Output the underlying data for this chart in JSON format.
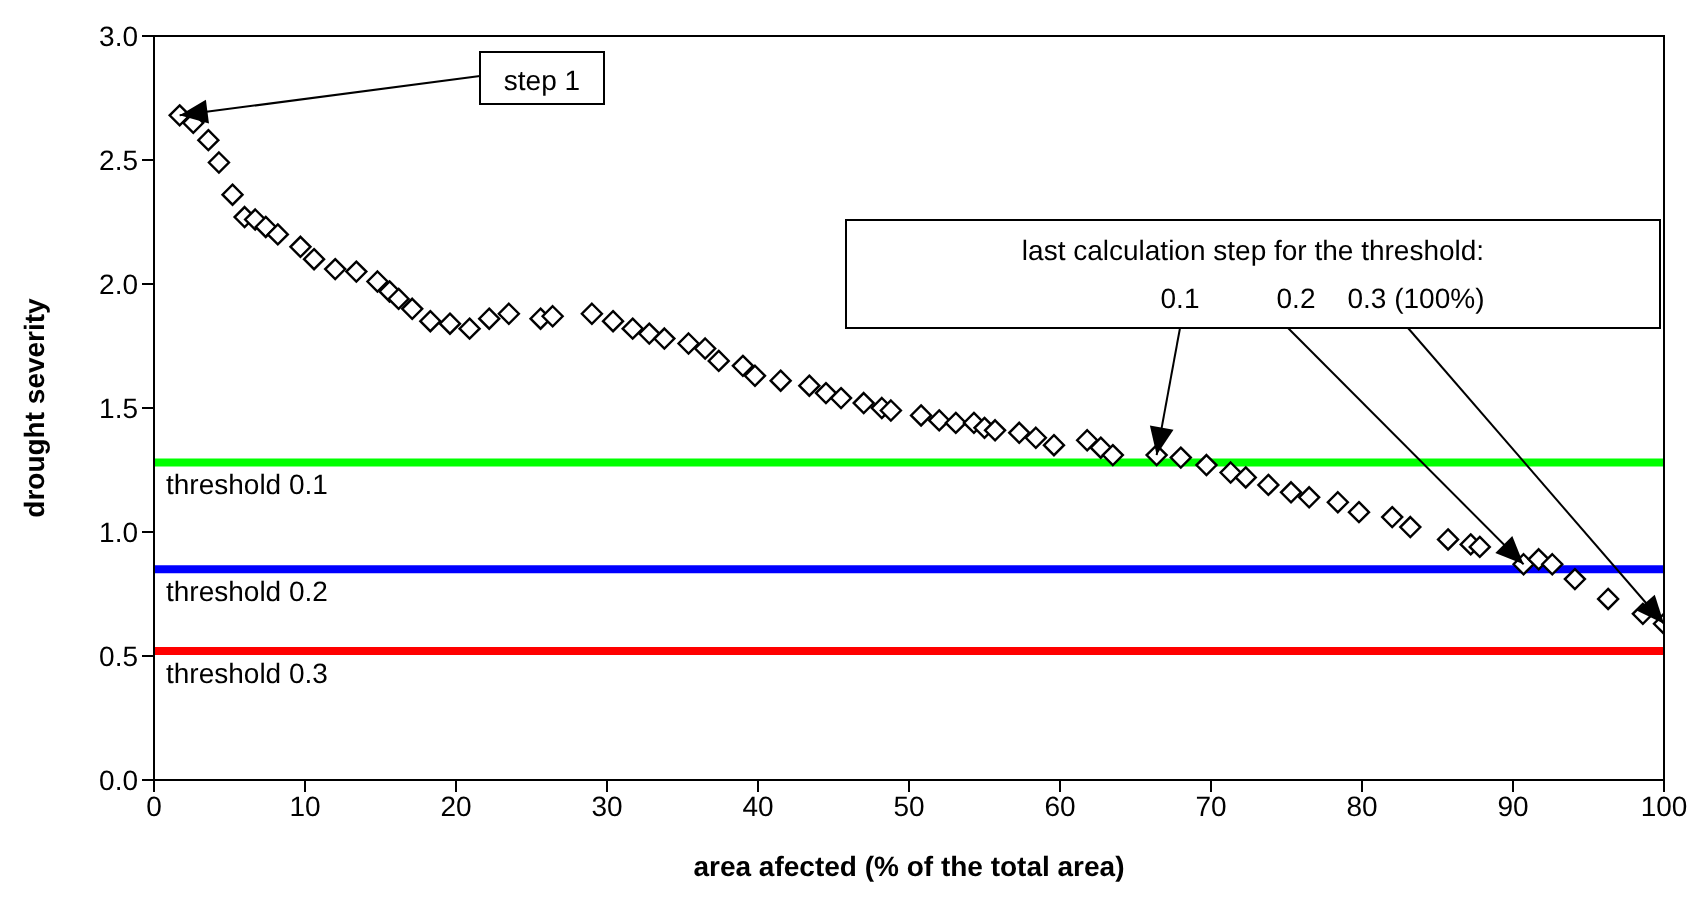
{
  "chart_data": {
    "type": "scatter",
    "xlabel": "area afected (% of the total area)",
    "ylabel": "drought severity",
    "x": [
      1.7,
      2.6,
      3.6,
      4.3,
      5.2,
      6.0,
      6.7,
      7.4,
      8.2,
      9.7,
      10.6,
      12.0,
      13.4,
      14.8,
      15.6,
      16.2,
      17.1,
      18.3,
      19.6,
      20.9,
      22.2,
      23.5,
      25.6,
      26.4,
      29.0,
      30.4,
      31.7,
      32.8,
      33.8,
      35.4,
      36.5,
      37.4,
      39.0,
      39.8,
      41.5,
      43.4,
      44.5,
      45.5,
      47.0,
      48.2,
      48.8,
      50.8,
      52.0,
      53.1,
      54.3,
      55.0,
      55.7,
      57.3,
      58.4,
      59.6,
      61.8,
      62.7,
      63.5,
      66.4,
      68.0,
      69.7,
      71.3,
      72.3,
      73.8,
      75.3,
      76.5,
      78.4,
      79.8,
      82.0,
      83.2,
      85.7,
      87.2,
      87.8,
      90.7,
      91.7,
      92.6,
      94.1,
      96.3,
      98.6,
      100
    ],
    "values": [
      2.68,
      2.65,
      2.58,
      2.49,
      2.36,
      2.27,
      2.26,
      2.23,
      2.2,
      2.15,
      2.1,
      2.06,
      2.05,
      2.01,
      1.97,
      1.94,
      1.9,
      1.85,
      1.84,
      1.82,
      1.86,
      1.88,
      1.86,
      1.87,
      1.88,
      1.85,
      1.82,
      1.8,
      1.78,
      1.76,
      1.74,
      1.69,
      1.67,
      1.63,
      1.61,
      1.59,
      1.56,
      1.54,
      1.52,
      1.5,
      1.49,
      1.47,
      1.45,
      1.44,
      1.44,
      1.42,
      1.41,
      1.4,
      1.38,
      1.35,
      1.37,
      1.34,
      1.31,
      1.31,
      1.3,
      1.27,
      1.24,
      1.22,
      1.19,
      1.16,
      1.14,
      1.12,
      1.08,
      1.06,
      1.02,
      0.97,
      0.95,
      0.94,
      0.87,
      0.89,
      0.87,
      0.81,
      0.73,
      0.67,
      0.63
    ],
    "color": "#000000",
    "marker": "diamond",
    "xlim": [
      0,
      100
    ],
    "xticks": [
      0,
      10,
      20,
      30,
      40,
      50,
      60,
      70,
      80,
      90,
      100
    ],
    "ylim": [
      0,
      3
    ],
    "yticks": [
      {
        "value": 0,
        "label": "0.0"
      },
      {
        "value": 0.5,
        "label": "0.5"
      },
      {
        "value": 1,
        "label": "1.0"
      },
      {
        "value": 1.5,
        "label": "1.5"
      },
      {
        "value": 2,
        "label": "2.0"
      },
      {
        "value": 2.5,
        "label": "2.5"
      },
      {
        "value": 3,
        "label": "3.0"
      }
    ],
    "ref_lines": [
      {
        "axis": "y",
        "value": 1.28,
        "label": "threshold 0.1",
        "color": "#00ff00"
      },
      {
        "axis": "y",
        "value": 0.85,
        "label": "threshold 0.2",
        "color": "#0000ff"
      },
      {
        "axis": "y",
        "value": 0.52,
        "label": "threshold 0.3",
        "color": "#ff0000"
      }
    ],
    "annotations": [
      {
        "text": "step 1",
        "x": 1.7,
        "y": 2.68
      },
      "last calculation step for the threshold:",
      {
        "text": "0.1",
        "x": 66.4,
        "y": 1.31
      },
      {
        "text": "0.2",
        "x": 90.7,
        "y": 0.87
      },
      {
        "text": "0.3 (100%)",
        "x": 100,
        "y": 0.63
      }
    ]
  }
}
